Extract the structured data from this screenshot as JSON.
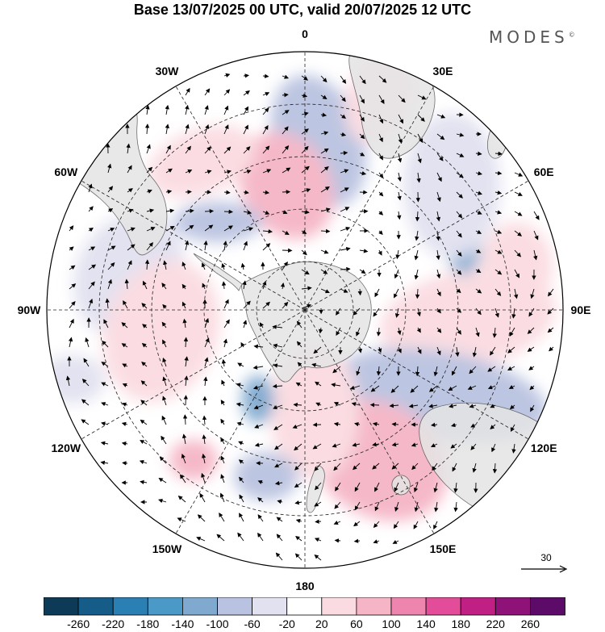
{
  "title": "Base 13/07/2025 00 UTC, valid 20/07/2025 12 UTC",
  "brand": "MODES",
  "brand_mark": "©",
  "lon_labels": [
    {
      "text": "0",
      "deg": 0
    },
    {
      "text": "30E",
      "deg": 30
    },
    {
      "text": "60E",
      "deg": 60
    },
    {
      "text": "90E",
      "deg": 90
    },
    {
      "text": "120E",
      "deg": 120
    },
    {
      "text": "150E",
      "deg": 150
    },
    {
      "text": "180",
      "deg": 180
    },
    {
      "text": "150W",
      "deg": 210
    },
    {
      "text": "120W",
      "deg": 240
    },
    {
      "text": "90W",
      "deg": 270
    },
    {
      "text": "60W",
      "deg": 300
    },
    {
      "text": "30W",
      "deg": 330
    }
  ],
  "vector_reference": {
    "value": "30"
  },
  "colorbar": {
    "ticks": [
      "-260",
      "-220",
      "-180",
      "-140",
      "-100",
      "-60",
      "-20",
      "20",
      "60",
      "100",
      "140",
      "180",
      "220",
      "260"
    ],
    "colors": [
      "#0d3a57",
      "#165c88",
      "#2a7fb3",
      "#4a99c6",
      "#7fa9cf",
      "#b9c2e0",
      "#e1e1f0",
      "#ffffff",
      "#fadbe1",
      "#f5b5c6",
      "#ee85ae",
      "#e24c98",
      "#c01f83",
      "#8e1278",
      "#5c0b68"
    ]
  },
  "colors": {
    "land": "#e4e4e4",
    "coast": "#555555",
    "arrow": "#000000"
  }
}
